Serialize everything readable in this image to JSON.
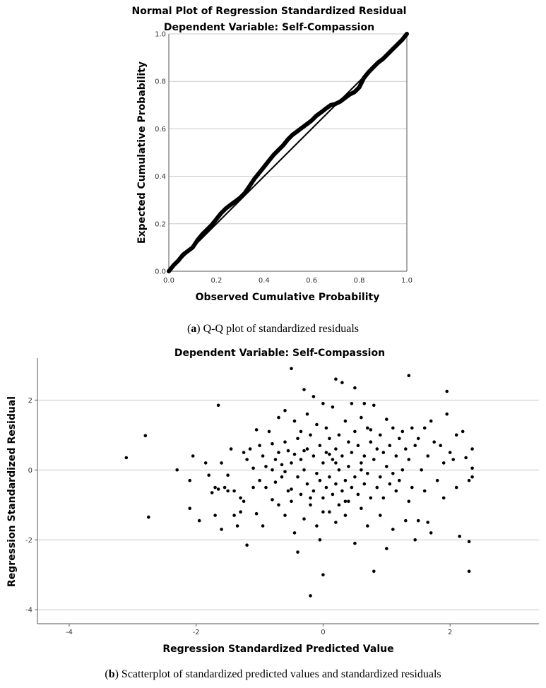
{
  "charts": [
    {
      "id": "qq",
      "caption_letter": "a",
      "caption_text": "Q-Q plot of standardized residuals",
      "title_line1": "Normal Plot of Regression Standardized Residual",
      "title_line2": "Dependent Variable: Self-Compassion",
      "xlabel": "Observed Cumulative Probability",
      "ylabel": "Expected Cumulative Probability"
    },
    {
      "id": "scatter",
      "caption_letter": "b",
      "caption_text": "Scatterplot of standardized predicted values and standardized residuals",
      "title": "Dependent Variable: Self-Compassion",
      "xlabel": "Regression Standardized Predicted Value",
      "ylabel": "Regression Standardized Residual"
    }
  ],
  "chart_data": [
    {
      "type": "line",
      "title": "Normal Plot of Regression Standardized Residual",
      "subtitle": "Dependent Variable: Self-Compassion",
      "xlabel": "Observed Cumulative Probability",
      "ylabel": "Expected Cumulative Probability",
      "xlim": [
        0,
        1
      ],
      "ylim": [
        0,
        1
      ],
      "xticks": [
        "0.0",
        "0.2",
        "0.4",
        "0.6",
        "0.8",
        "1.0"
      ],
      "yticks": [
        "0.0",
        "0.2",
        "0.4",
        "0.6",
        "0.8",
        "1.0"
      ],
      "grid": "horizontal",
      "reference_line": [
        [
          0,
          0
        ],
        [
          1,
          1
        ]
      ],
      "x": [
        0.0,
        0.02,
        0.04,
        0.06,
        0.08,
        0.1,
        0.12,
        0.14,
        0.16,
        0.18,
        0.2,
        0.22,
        0.24,
        0.26,
        0.28,
        0.3,
        0.32,
        0.34,
        0.36,
        0.38,
        0.4,
        0.42,
        0.44,
        0.46,
        0.48,
        0.5,
        0.52,
        0.54,
        0.56,
        0.58,
        0.6,
        0.62,
        0.64,
        0.66,
        0.68,
        0.7,
        0.72,
        0.74,
        0.76,
        0.78,
        0.8,
        0.82,
        0.84,
        0.86,
        0.88,
        0.9,
        0.92,
        0.94,
        0.96,
        0.98,
        1.0
      ],
      "y": [
        0.0,
        0.025,
        0.045,
        0.07,
        0.085,
        0.1,
        0.13,
        0.155,
        0.175,
        0.195,
        0.22,
        0.245,
        0.265,
        0.28,
        0.295,
        0.31,
        0.33,
        0.36,
        0.39,
        0.415,
        0.44,
        0.465,
        0.49,
        0.51,
        0.53,
        0.555,
        0.575,
        0.59,
        0.605,
        0.62,
        0.635,
        0.655,
        0.67,
        0.685,
        0.7,
        0.705,
        0.715,
        0.73,
        0.745,
        0.755,
        0.775,
        0.815,
        0.84,
        0.86,
        0.88,
        0.895,
        0.915,
        0.935,
        0.955,
        0.975,
        1.0
      ]
    },
    {
      "type": "scatter",
      "title": "Dependent Variable: Self-Compassion",
      "xlabel": "Regression Standardized Predicted Value",
      "ylabel": "Regression Standardized Residual",
      "xlim": [
        -4.5,
        3.4
      ],
      "ylim": [
        -4.4,
        3.2
      ],
      "xticks": [
        -4,
        -2,
        0,
        2
      ],
      "yticks": [
        -4,
        -2,
        0,
        2
      ],
      "grid": "horizontal",
      "points": [
        [
          -3.1,
          0.35
        ],
        [
          -2.8,
          0.98
        ],
        [
          -2.75,
          -1.35
        ],
        [
          -2.3,
          0.0
        ],
        [
          -2.1,
          -0.3
        ],
        [
          -2.1,
          -1.1
        ],
        [
          -2.05,
          0.4
        ],
        [
          -1.95,
          -1.45
        ],
        [
          -1.85,
          0.2
        ],
        [
          -1.8,
          -0.15
        ],
        [
          -1.75,
          -0.65
        ],
        [
          -1.7,
          -0.5
        ],
        [
          -1.7,
          -1.3
        ],
        [
          -1.65,
          1.85
        ],
        [
          -1.65,
          -0.55
        ],
        [
          -1.6,
          0.2
        ],
        [
          -1.6,
          -1.7
        ],
        [
          -1.55,
          -0.5
        ],
        [
          -1.5,
          -0.6
        ],
        [
          -1.5,
          -0.15
        ],
        [
          -1.45,
          0.6
        ],
        [
          -1.4,
          -1.3
        ],
        [
          -1.4,
          -0.6
        ],
        [
          -1.35,
          -1.6
        ],
        [
          -1.3,
          -0.8
        ],
        [
          -1.3,
          -1.2
        ],
        [
          -1.25,
          0.5
        ],
        [
          -1.25,
          -0.9
        ],
        [
          -1.2,
          0.3
        ],
        [
          -1.2,
          -2.15
        ],
        [
          -1.15,
          0.6
        ],
        [
          -1.1,
          -0.5
        ],
        [
          -1.1,
          0.05
        ],
        [
          -1.05,
          1.15
        ],
        [
          -1.0,
          -0.3
        ],
        [
          -1.0,
          0.7
        ],
        [
          -0.95,
          -1.6
        ],
        [
          -0.9,
          0.1
        ],
        [
          -0.9,
          -0.5
        ],
        [
          -0.85,
          1.1
        ],
        [
          -0.8,
          0.75
        ],
        [
          -0.8,
          -0.85
        ],
        [
          -0.75,
          0.3
        ],
        [
          -0.75,
          -0.35
        ],
        [
          -0.7,
          1.5
        ],
        [
          -0.7,
          0.5
        ],
        [
          -0.7,
          -1.0
        ],
        [
          -0.65,
          0.15
        ],
        [
          -0.65,
          -0.2
        ],
        [
          -0.6,
          1.7
        ],
        [
          -0.6,
          0.8
        ],
        [
          -0.6,
          -1.3
        ],
        [
          -0.55,
          0.55
        ],
        [
          -0.55,
          -0.6
        ],
        [
          -0.5,
          2.9
        ],
        [
          -0.5,
          0.2
        ],
        [
          -0.5,
          -0.9
        ],
        [
          -0.45,
          1.4
        ],
        [
          -0.45,
          0.45
        ],
        [
          -0.45,
          -1.8
        ],
        [
          -0.4,
          0.9
        ],
        [
          -0.4,
          -0.2
        ],
        [
          -0.4,
          -2.35
        ],
        [
          -0.35,
          1.1
        ],
        [
          -0.35,
          0.3
        ],
        [
          -0.35,
          -0.7
        ],
        [
          -0.3,
          2.3
        ],
        [
          -0.3,
          0.0
        ],
        [
          -0.3,
          -1.4
        ],
        [
          -0.25,
          1.6
        ],
        [
          -0.25,
          0.6
        ],
        [
          -0.25,
          -0.4
        ],
        [
          -0.2,
          1.0
        ],
        [
          -0.2,
          -1.0
        ],
        [
          -0.2,
          -3.6
        ],
        [
          -0.15,
          0.4
        ],
        [
          -0.15,
          -0.6
        ],
        [
          -0.15,
          2.1
        ],
        [
          -0.1,
          1.3
        ],
        [
          -0.1,
          -0.1
        ],
        [
          -0.1,
          -1.6
        ],
        [
          -0.05,
          0.7
        ],
        [
          -0.05,
          -0.3
        ],
        [
          -0.05,
          -2.0
        ],
        [
          0.0,
          1.9
        ],
        [
          0.0,
          0.2
        ],
        [
          0.0,
          -0.8
        ],
        [
          0.0,
          -3.0
        ],
        [
          0.05,
          1.2
        ],
        [
          0.05,
          0.5
        ],
        [
          0.05,
          -0.5
        ],
        [
          0.1,
          0.9
        ],
        [
          0.1,
          -0.2
        ],
        [
          0.1,
          -1.2
        ],
        [
          0.15,
          1.8
        ],
        [
          0.15,
          0.3
        ],
        [
          0.15,
          -0.7
        ],
        [
          0.2,
          2.6
        ],
        [
          0.2,
          0.6
        ],
        [
          0.2,
          -0.4
        ],
        [
          0.2,
          -1.5
        ],
        [
          0.25,
          1.0
        ],
        [
          0.25,
          0.0
        ],
        [
          0.25,
          -1.0
        ],
        [
          0.3,
          2.5
        ],
        [
          0.3,
          0.4
        ],
        [
          0.3,
          -0.6
        ],
        [
          0.35,
          1.4
        ],
        [
          0.35,
          -0.3
        ],
        [
          0.35,
          -1.3
        ],
        [
          0.4,
          0.8
        ],
        [
          0.4,
          0.1
        ],
        [
          0.4,
          -0.9
        ],
        [
          0.45,
          1.9
        ],
        [
          0.45,
          0.5
        ],
        [
          0.45,
          -0.5
        ],
        [
          0.5,
          2.35
        ],
        [
          0.5,
          1.1
        ],
        [
          0.5,
          -0.2
        ],
        [
          0.5,
          -2.1
        ],
        [
          0.55,
          0.7
        ],
        [
          0.55,
          -0.7
        ],
        [
          0.6,
          1.5
        ],
        [
          0.6,
          0.2
        ],
        [
          0.6,
          -1.1
        ],
        [
          0.65,
          1.9
        ],
        [
          0.65,
          0.4
        ],
        [
          0.65,
          -0.4
        ],
        [
          0.7,
          1.2
        ],
        [
          0.7,
          -0.1
        ],
        [
          0.7,
          -1.6
        ],
        [
          0.75,
          0.8
        ],
        [
          0.75,
          -0.8
        ],
        [
          0.8,
          1.85
        ],
        [
          0.8,
          0.3
        ],
        [
          0.8,
          -2.9
        ],
        [
          0.85,
          0.6
        ],
        [
          0.85,
          -0.5
        ],
        [
          0.9,
          1.0
        ],
        [
          0.9,
          -0.2
        ],
        [
          0.9,
          -1.3
        ],
        [
          0.95,
          0.5
        ],
        [
          0.95,
          -0.8
        ],
        [
          1.0,
          1.45
        ],
        [
          1.0,
          0.1
        ],
        [
          1.0,
          -2.25
        ],
        [
          1.05,
          0.7
        ],
        [
          1.05,
          -0.4
        ],
        [
          1.1,
          1.2
        ],
        [
          1.1,
          -0.1
        ],
        [
          1.1,
          -1.7
        ],
        [
          1.15,
          0.4
        ],
        [
          1.15,
          -0.6
        ],
        [
          1.2,
          0.9
        ],
        [
          1.2,
          -0.3
        ],
        [
          1.25,
          1.1
        ],
        [
          1.25,
          0.0
        ],
        [
          1.3,
          0.6
        ],
        [
          1.3,
          -1.45
        ],
        [
          1.35,
          2.7
        ],
        [
          1.35,
          0.3
        ],
        [
          1.35,
          -0.9
        ],
        [
          1.4,
          1.2
        ],
        [
          1.4,
          -0.5
        ],
        [
          1.45,
          0.7
        ],
        [
          1.45,
          -2.0
        ],
        [
          1.5,
          0.9
        ],
        [
          1.5,
          -1.45
        ],
        [
          1.55,
          0.0
        ],
        [
          1.6,
          1.2
        ],
        [
          1.6,
          -0.6
        ],
        [
          1.65,
          0.4
        ],
        [
          1.65,
          -1.5
        ],
        [
          1.7,
          1.4
        ],
        [
          1.7,
          -1.8
        ],
        [
          1.75,
          0.8
        ],
        [
          1.8,
          -0.3
        ],
        [
          1.85,
          0.7
        ],
        [
          1.9,
          0.2
        ],
        [
          1.9,
          -0.8
        ],
        [
          1.95,
          2.25
        ],
        [
          1.95,
          1.6
        ],
        [
          2.0,
          0.5
        ],
        [
          2.05,
          0.3
        ],
        [
          2.1,
          1.0
        ],
        [
          2.1,
          -0.5
        ],
        [
          2.15,
          -1.9
        ],
        [
          2.2,
          1.1
        ],
        [
          2.25,
          0.35
        ],
        [
          2.3,
          -0.3
        ],
        [
          2.3,
          -2.05
        ],
        [
          2.3,
          -2.9
        ],
        [
          2.35,
          0.6
        ],
        [
          2.35,
          0.05
        ],
        [
          2.35,
          -0.2
        ],
        [
          -0.6,
          -0.05
        ],
        [
          -0.8,
          0.0
        ],
        [
          -0.3,
          0.55
        ],
        [
          0.0,
          -1.2
        ],
        [
          0.2,
          0.2
        ],
        [
          -0.5,
          -0.55
        ],
        [
          -0.2,
          -0.8
        ],
        [
          0.1,
          0.45
        ],
        [
          0.35,
          -0.9
        ],
        [
          0.6,
          0.0
        ],
        [
          -0.95,
          0.4
        ],
        [
          -1.05,
          -1.25
        ],
        [
          0.75,
          1.15
        ]
      ]
    }
  ]
}
